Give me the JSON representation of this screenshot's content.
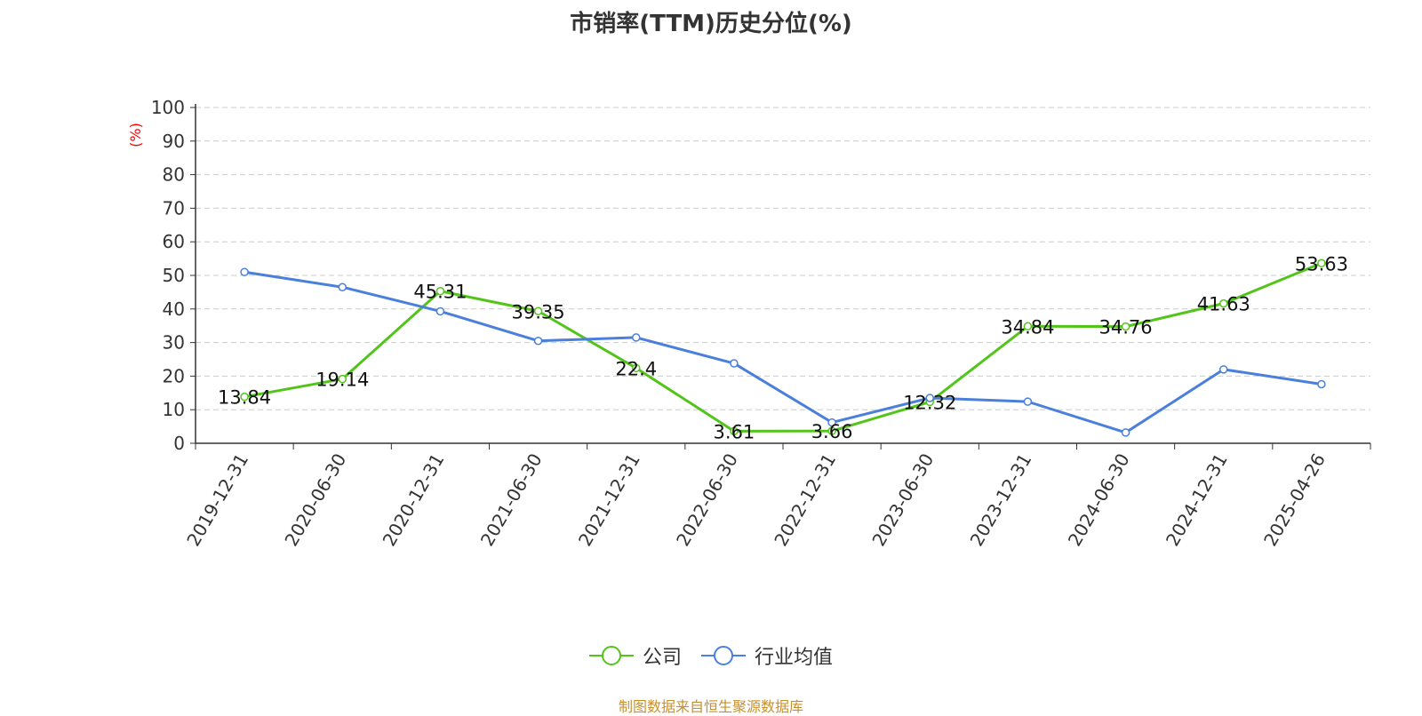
{
  "chart_data": {
    "type": "line",
    "title": "市销率(TTM)历史分位(%)",
    "ylabel": "(%)",
    "ylim": [
      0,
      100
    ],
    "yticks": [
      0,
      10,
      20,
      30,
      40,
      50,
      60,
      70,
      80,
      90,
      100
    ],
    "categories": [
      "2019-12-31",
      "2020-06-30",
      "2020-12-31",
      "2021-06-30",
      "2021-12-31",
      "2022-06-30",
      "2022-12-31",
      "2023-06-30",
      "2023-12-31",
      "2024-06-30",
      "2024-12-31",
      "2025-04-26"
    ],
    "grid": true,
    "legend_placement": "bottom",
    "series": [
      {
        "name": "公司",
        "color": "#52c41a",
        "values": [
          13.84,
          19.14,
          45.31,
          39.35,
          22.4,
          3.61,
          3.66,
          12.32,
          34.84,
          34.76,
          41.63,
          53.63
        ],
        "labels": [
          "13.84",
          "19.14",
          "45.31",
          "39.35",
          "22.4",
          "3.61",
          "3.66",
          "12.32",
          "34.84",
          "34.76",
          "41.63",
          "53.63"
        ]
      },
      {
        "name": "行业均值",
        "color": "#4a7fdc",
        "values": [
          51,
          46.5,
          39.3,
          30.5,
          31.5,
          23.8,
          6.2,
          13.5,
          12.4,
          3.2,
          22,
          17.6
        ]
      }
    ]
  },
  "source": "制图数据来自恒生聚源数据库"
}
